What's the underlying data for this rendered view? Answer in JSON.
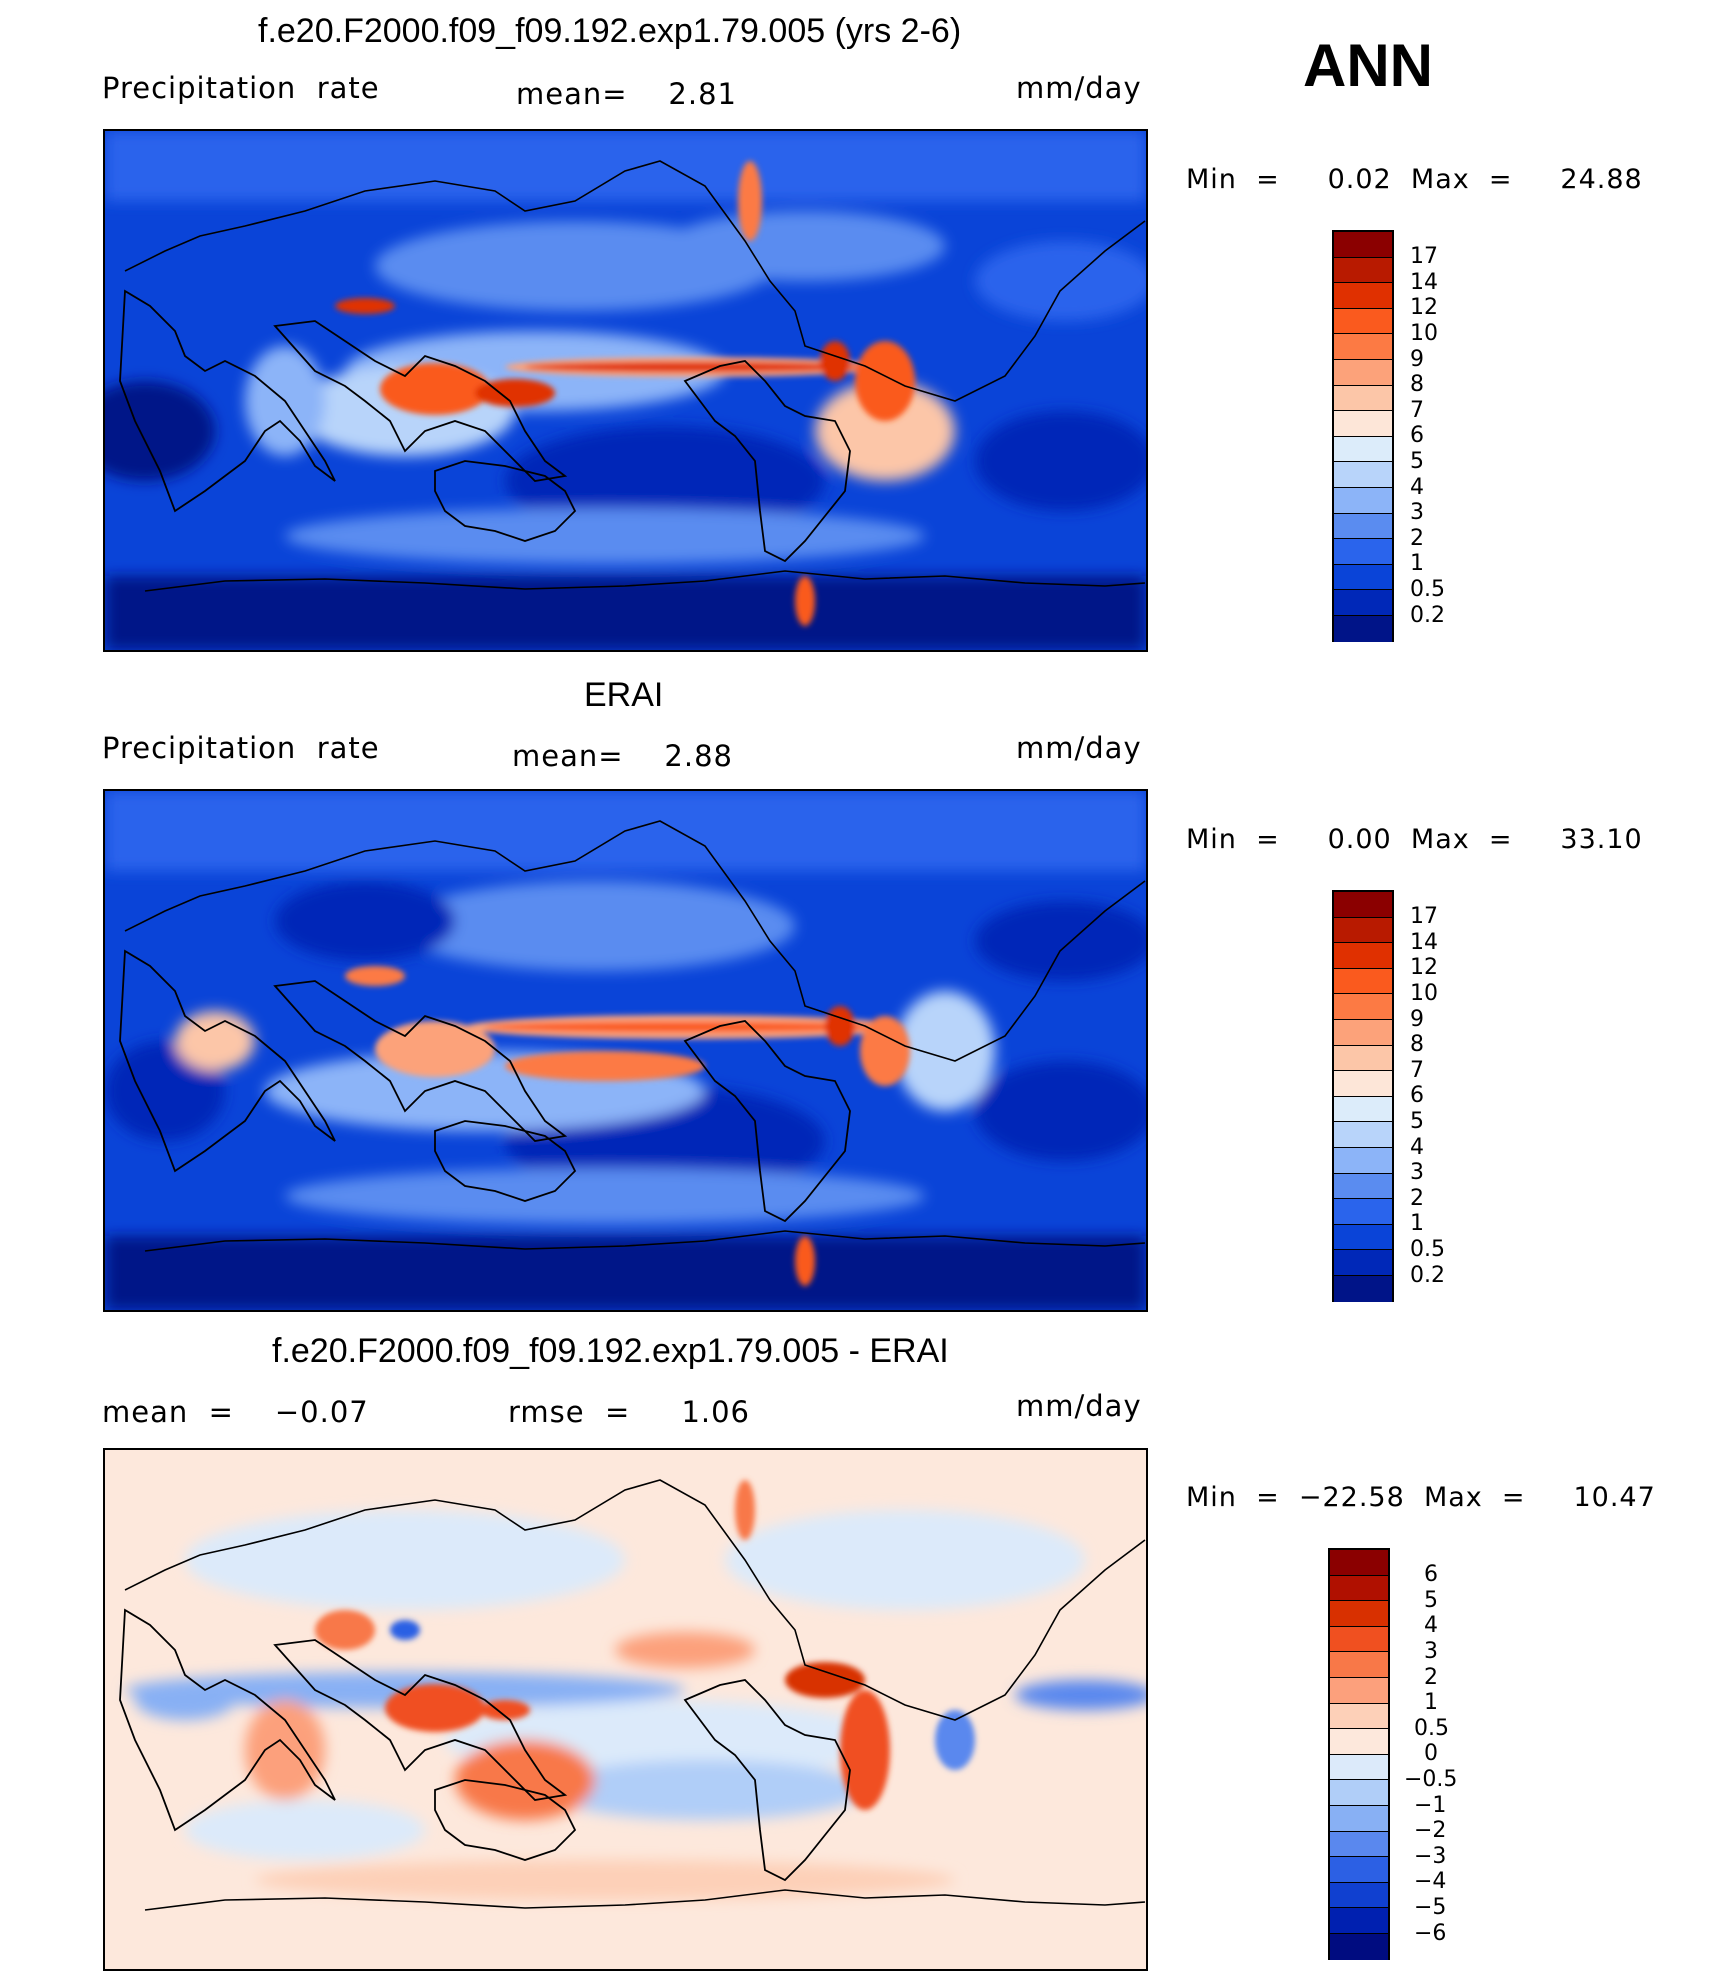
{
  "header": {
    "season": "ANN"
  },
  "colors": {
    "abs": [
      "#8b0000",
      "#b81a00",
      "#e03000",
      "#fa5a1e",
      "#fc7a44",
      "#fca27a",
      "#fcc6a8",
      "#fde6d8",
      "#dcecfa",
      "#b8d4fa",
      "#8cb4f8",
      "#5a8cf0",
      "#2a64ec",
      "#0a44d8",
      "#0028b8",
      "#001488"
    ],
    "diff": [
      "#8b0000",
      "#b01000",
      "#d83000",
      "#f05020",
      "#f87848",
      "#fca07c",
      "#fdd0b8",
      "#fde8dc",
      "#dceafa",
      "#b0cef8",
      "#88b0f4",
      "#5a88ee",
      "#2c60e4",
      "#1040d0",
      "#0020b0",
      "#000c80"
    ]
  },
  "panels": [
    {
      "title": "f.e20.F2000.f09_f09.192.exp1.79.005 (yrs 2-6)",
      "left": "Precipitation  rate",
      "center": "mean=    2.81",
      "units": "mm/day",
      "minmax": "Min  =     0.02  Max  =     24.88",
      "labels": [
        "17",
        "14",
        "12",
        "10",
        "9",
        "8",
        "7",
        "6",
        "5",
        "4",
        "3",
        "2",
        "1",
        "0.5",
        "0.2"
      ]
    },
    {
      "title": "ERAI",
      "left": "Precipitation  rate",
      "center": "mean=    2.88",
      "units": "mm/day",
      "minmax": "Min  =     0.00  Max  =     33.10",
      "labels": [
        "17",
        "14",
        "12",
        "10",
        "9",
        "8",
        "7",
        "6",
        "5",
        "4",
        "3",
        "2",
        "1",
        "0.5",
        "0.2"
      ]
    },
    {
      "title": "f.e20.F2000.f09_f09.192.exp1.79.005 - ERAI",
      "left": "mean  =    −0.07",
      "center": "rmse  =     1.06",
      "units": "mm/day",
      "minmax": "Min  =  −22.58  Max  =     10.47",
      "labels": [
        "6",
        "5",
        "4",
        "3",
        "2",
        "1",
        "0.5",
        "0",
        "−0.5",
        "−1",
        "−2",
        "−3",
        "−4",
        "−5",
        "−6"
      ]
    }
  ]
}
